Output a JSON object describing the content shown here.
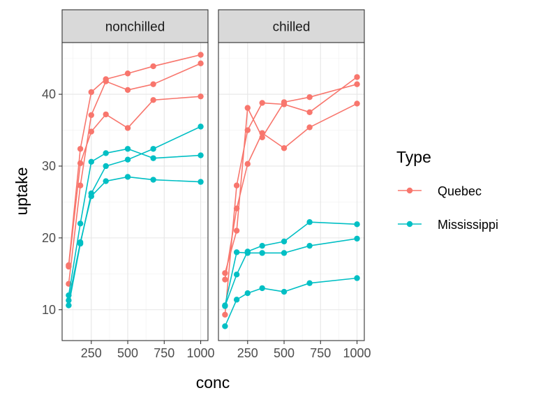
{
  "chart_data": {
    "type": "line",
    "xlabel": "conc",
    "ylabel": "uptake",
    "x": [
      95,
      175,
      250,
      350,
      500,
      675,
      1000
    ],
    "xticks": [
      250,
      500,
      750,
      1000
    ],
    "xtick_labels": [
      "250",
      "500",
      "750",
      "1000"
    ],
    "yticks": [
      10,
      20,
      30,
      40
    ],
    "ytick_labels": [
      "10",
      "20",
      "30",
      "40"
    ],
    "xlim": [
      50,
      1050
    ],
    "ylim": [
      5.7,
      47.2
    ],
    "grid": true,
    "legend": {
      "title": "Type",
      "position": "right",
      "entries": [
        {
          "label": "Quebec",
          "color": "#F8766D"
        },
        {
          "label": "Mississippi",
          "color": "#00BFC4"
        }
      ]
    },
    "panels": [
      {
        "strip": "nonchilled",
        "series": [
          {
            "type": "Quebec",
            "values": [
              16.0,
              30.4,
              34.8,
              37.2,
              35.3,
              39.2,
              39.7
            ]
          },
          {
            "type": "Quebec",
            "values": [
              13.6,
              27.3,
              37.1,
              41.8,
              40.6,
              41.4,
              44.3
            ]
          },
          {
            "type": "Quebec",
            "values": [
              16.2,
              32.4,
              40.3,
              42.1,
              42.9,
              43.9,
              45.5
            ]
          },
          {
            "type": "Mississippi",
            "values": [
              10.6,
              19.2,
              26.2,
              30.0,
              30.9,
              32.4,
              35.5
            ]
          },
          {
            "type": "Mississippi",
            "values": [
              12.0,
              22.0,
              30.6,
              31.8,
              32.4,
              31.1,
              31.5
            ]
          },
          {
            "type": "Mississippi",
            "values": [
              11.3,
              19.4,
              25.8,
              27.9,
              28.5,
              28.1,
              27.8
            ]
          }
        ]
      },
      {
        "strip": "chilled",
        "series": [
          {
            "type": "Quebec",
            "values": [
              14.2,
              24.1,
              30.3,
              34.6,
              32.5,
              35.4,
              38.7
            ]
          },
          {
            "type": "Quebec",
            "values": [
              9.3,
              27.3,
              35.0,
              38.8,
              38.6,
              37.5,
              42.4
            ]
          },
          {
            "type": "Quebec",
            "values": [
              15.1,
              21.0,
              38.1,
              34.0,
              38.9,
              39.6,
              41.4
            ]
          },
          {
            "type": "Mississippi",
            "values": [
              10.5,
              14.9,
              18.1,
              18.9,
              19.5,
              22.2,
              21.9
            ]
          },
          {
            "type": "Mississippi",
            "values": [
              7.7,
              11.4,
              12.3,
              13.0,
              12.5,
              13.7,
              14.4
            ]
          },
          {
            "type": "Mississippi",
            "values": [
              10.6,
              18.0,
              17.9,
              17.9,
              17.9,
              18.9,
              19.9
            ]
          }
        ]
      }
    ]
  }
}
